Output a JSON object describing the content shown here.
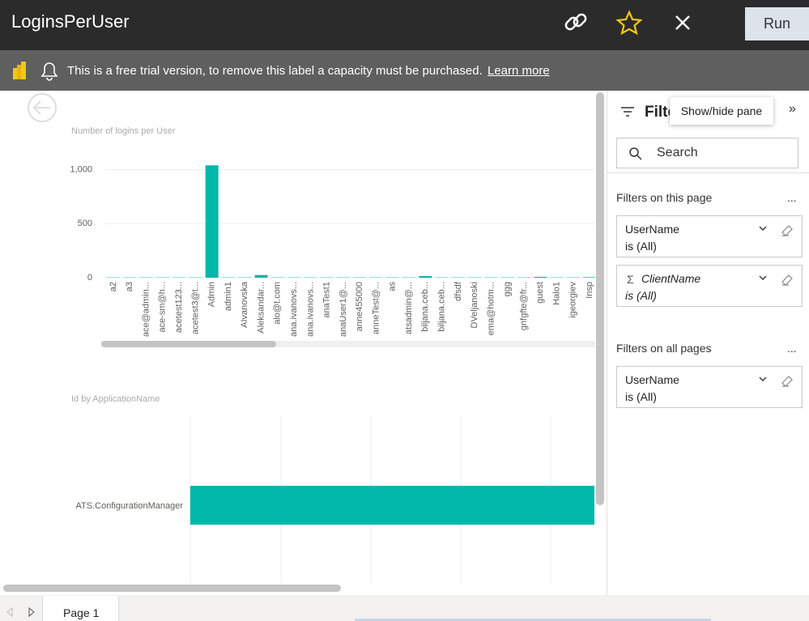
{
  "header": {
    "title": "LoginsPerUser",
    "run": "Run"
  },
  "banner": {
    "text": "This is a free trial version, to remove this label a capacity must be purchased.",
    "link": "Learn more"
  },
  "chart_data": {
    "type": "bar",
    "title": "Number of logins per User",
    "categories": [
      "a2",
      "a3",
      "ace@admin...",
      "ace-sm@h...",
      "acetest123...",
      "acetest3@t...",
      "Admin",
      "admin1",
      "AIvanovska",
      "Aleksandar...",
      "alo@t.com",
      "ana.ivanovs...",
      "ana.ivanovs...",
      "anaTest1",
      "anaUser1@...",
      "anne455000",
      "anneTest@...",
      "as",
      "atsadmin@...",
      "biljana.ceb...",
      "biljana.ceb...",
      "dfsdf",
      "DVeljanoski",
      "ema@hotm...",
      "ggg",
      "gnfgfte@fr...",
      "guest",
      "Halo1",
      "igeorgiev",
      "Insp"
    ],
    "values": [
      3,
      3,
      3,
      3,
      3,
      3,
      1040,
      3,
      3,
      25,
      3,
      3,
      3,
      3,
      3,
      3,
      3,
      3,
      3,
      15,
      3,
      3,
      3,
      3,
      3,
      3,
      8,
      3,
      3,
      5
    ],
    "color": "#01b8aa",
    "ylim": [
      0,
      1100
    ],
    "yticks": [
      0,
      500,
      {
        "value": 1000,
        "label": "1,000"
      }
    ],
    "grid": true
  },
  "visual2": {
    "title": "Id by ApplicationName",
    "category": "ATS.ConfigurationManager"
  },
  "filters": {
    "pane_title": "Filte",
    "tooltip": "Show/hide pane",
    "search": "Search",
    "page_heading": "Filters on this page",
    "page_more": "...",
    "page_cards": [
      {
        "field": "UserName",
        "state": "is (All)"
      },
      {
        "field": "ClientName",
        "state": "is (All)"
      }
    ],
    "all_heading": "Filters on all pages",
    "all_more": "...",
    "all_cards": [
      {
        "field": "UserName",
        "state": "is (All)"
      }
    ]
  },
  "tabs": {
    "page": "Page 1"
  }
}
